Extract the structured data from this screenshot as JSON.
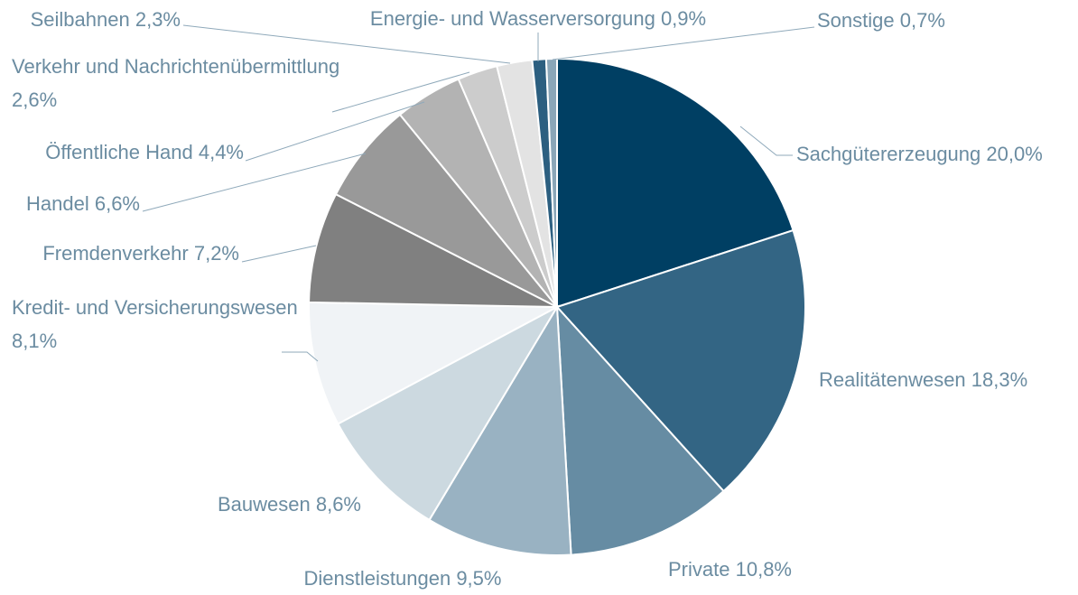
{
  "chart_data": {
    "type": "pie",
    "categories": [
      "Sachgütererzeugung",
      "Realitätenwesen",
      "Private",
      "Dienstleistungen",
      "Bauwesen",
      "Kredit- und Versicherungswesen",
      "Fremdenverkehr",
      "Handel",
      "Öffentliche Hand",
      "Verkehr und Nachrichtenübermittlung",
      "Seilbahnen",
      "Energie- und Wasserversorgung",
      "Sonstige"
    ],
    "values": [
      20.0,
      18.3,
      10.8,
      9.5,
      8.6,
      8.1,
      7.2,
      6.6,
      4.4,
      2.6,
      2.3,
      0.9,
      0.7
    ],
    "value_labels": [
      "20,0%",
      "18,3%",
      "10,8%",
      "9,5%",
      "8,6%",
      "8,1%",
      "7,2%",
      "6,6%",
      "4,4%",
      "2,6%",
      "2,3%",
      "0,9%",
      "0,7%"
    ],
    "colors": [
      "#003f63",
      "#336584",
      "#668ca3",
      "#99b2c2",
      "#ccd9e0",
      "#f0f3f6",
      "#808080",
      "#999999",
      "#b3b3b3",
      "#cccccc",
      "#e3e3e3",
      "#2c5f80",
      "#8aa6b8"
    ]
  }
}
